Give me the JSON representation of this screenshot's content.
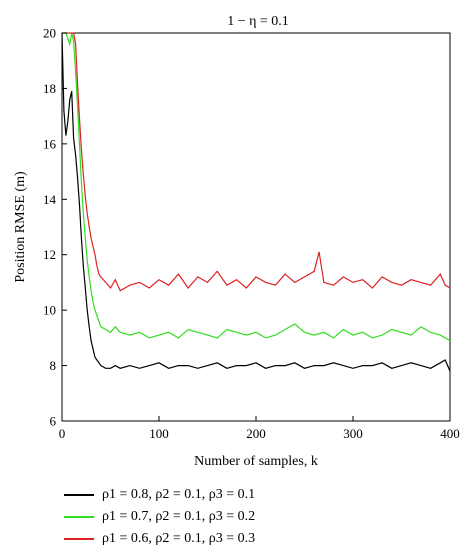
{
  "chart_data": {
    "type": "line",
    "title": "1 − η = 0.1",
    "xlabel": "Number of samples, k",
    "ylabel": "Position RMSE (m)",
    "xlim": [
      0,
      400
    ],
    "ylim": [
      6,
      20
    ],
    "xticks": [
      0,
      100,
      200,
      300,
      400
    ],
    "yticks": [
      6,
      8,
      10,
      12,
      14,
      16,
      18,
      20
    ],
    "grid": false,
    "legend_position": "bottom-left, below plot",
    "series": [
      {
        "name": "ρ1 = 0.8, ρ2 = 0.1, ρ3 = 0.1",
        "color": "#000000",
        "x": [
          0,
          2,
          4,
          6,
          8,
          10,
          12,
          14,
          16,
          18,
          20,
          22,
          24,
          26,
          28,
          30,
          32,
          34,
          36,
          38,
          40,
          45,
          50,
          55,
          60,
          70,
          80,
          90,
          100,
          110,
          120,
          130,
          140,
          150,
          160,
          170,
          180,
          190,
          200,
          210,
          220,
          230,
          240,
          250,
          260,
          270,
          280,
          290,
          300,
          310,
          320,
          330,
          340,
          350,
          360,
          370,
          380,
          390,
          395,
          400
        ],
        "y": [
          20,
          17.2,
          16.3,
          16.8,
          17.6,
          17.9,
          16.2,
          15.6,
          14.8,
          13.8,
          12.6,
          11.6,
          10.8,
          10.0,
          9.4,
          8.9,
          8.6,
          8.3,
          8.2,
          8.1,
          8.0,
          7.9,
          7.9,
          8.0,
          7.9,
          8.0,
          7.9,
          8.0,
          8.1,
          7.9,
          8.0,
          8.0,
          7.9,
          8.0,
          8.1,
          7.9,
          8.0,
          8.0,
          8.1,
          7.9,
          8.0,
          8.0,
          8.1,
          7.9,
          8.0,
          8.0,
          8.1,
          8.0,
          7.9,
          8.0,
          8.0,
          8.1,
          7.9,
          8.0,
          8.1,
          8.0,
          7.9,
          8.1,
          8.2,
          7.8
        ]
      },
      {
        "name": "ρ1 = 0.7, ρ2 = 0.1, ρ3 = 0.2",
        "color": "#33dd22",
        "x": [
          0,
          4,
          8,
          10,
          12,
          14,
          16,
          18,
          20,
          22,
          24,
          26,
          28,
          30,
          32,
          34,
          36,
          38,
          40,
          45,
          50,
          55,
          60,
          70,
          80,
          90,
          100,
          110,
          120,
          130,
          140,
          150,
          160,
          170,
          180,
          190,
          200,
          210,
          220,
          230,
          240,
          250,
          260,
          270,
          280,
          290,
          300,
          310,
          320,
          330,
          340,
          350,
          360,
          370,
          380,
          390,
          395,
          400
        ],
        "y": [
          20,
          20,
          19.6,
          20,
          19.7,
          18.6,
          17.4,
          16.0,
          14.6,
          13.5,
          12.6,
          11.8,
          11.2,
          10.7,
          10.3,
          10.0,
          9.8,
          9.6,
          9.4,
          9.3,
          9.2,
          9.4,
          9.2,
          9.1,
          9.2,
          9.0,
          9.1,
          9.2,
          9.0,
          9.3,
          9.2,
          9.1,
          9.0,
          9.3,
          9.2,
          9.1,
          9.2,
          9.0,
          9.1,
          9.3,
          9.5,
          9.2,
          9.1,
          9.2,
          9.0,
          9.3,
          9.1,
          9.2,
          9.0,
          9.1,
          9.3,
          9.2,
          9.1,
          9.4,
          9.2,
          9.1,
          9.0,
          8.9
        ]
      },
      {
        "name": "ρ1 = 0.6, ρ2 = 0.1, ρ3 = 0.3",
        "color": "#dd2222",
        "x": [
          0,
          4,
          8,
          12,
          14,
          16,
          18,
          20,
          22,
          24,
          26,
          28,
          30,
          32,
          34,
          36,
          38,
          40,
          45,
          50,
          55,
          60,
          70,
          80,
          90,
          100,
          110,
          120,
          130,
          140,
          150,
          160,
          170,
          180,
          190,
          200,
          210,
          220,
          230,
          240,
          250,
          260,
          265,
          270,
          280,
          290,
          300,
          310,
          320,
          330,
          340,
          350,
          360,
          370,
          380,
          390,
          395,
          400
        ],
        "y": [
          20,
          20,
          20,
          20,
          19.6,
          18.2,
          16.9,
          15.8,
          14.9,
          14.1,
          13.5,
          13.0,
          12.6,
          12.3,
          12.0,
          11.6,
          11.3,
          11.2,
          11.0,
          10.8,
          11.1,
          10.7,
          10.9,
          11.0,
          10.8,
          11.1,
          10.9,
          11.3,
          10.8,
          11.2,
          11.0,
          11.4,
          10.9,
          11.1,
          10.8,
          11.2,
          11.0,
          10.9,
          11.3,
          11.0,
          11.2,
          11.4,
          12.1,
          11.0,
          10.9,
          11.2,
          11.0,
          11.1,
          10.8,
          11.2,
          11.0,
          10.9,
          11.1,
          11.0,
          10.9,
          11.3,
          10.9,
          10.8
        ]
      }
    ]
  },
  "legend": {
    "items": [
      {
        "label": "ρ1 = 0.8, ρ2 = 0.1, ρ3 = 0.1",
        "color": "#000000"
      },
      {
        "label": "ρ1 = 0.7, ρ2 = 0.1, ρ3 = 0.2",
        "color": "#33dd22"
      },
      {
        "label": "ρ1 = 0.6, ρ2 = 0.1, ρ3 = 0.3",
        "color": "#dd2222"
      }
    ]
  }
}
